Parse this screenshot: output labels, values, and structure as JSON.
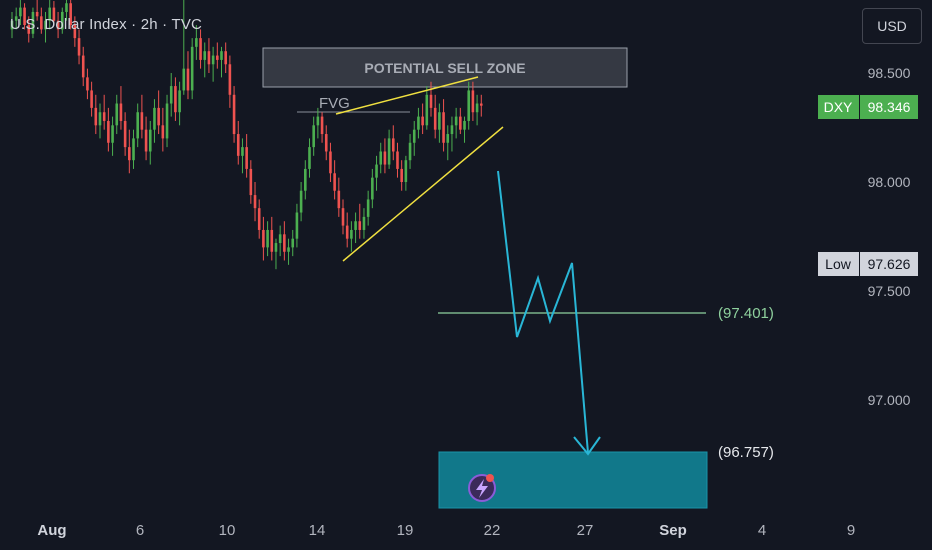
{
  "header": {
    "symbol_title": "U.S. Dollar Index · 2h · TVC"
  },
  "currency_button": {
    "label": "USD"
  },
  "price_tags": {
    "current": {
      "label": "DXY",
      "value": "98.346",
      "color": "#4caf50"
    },
    "low": {
      "label": "Low",
      "value": "97.626",
      "color": "#d1d4dc"
    }
  },
  "annotations": {
    "sell_zone_label": "POTENTIAL SELL ZONE",
    "fvg_label": "FVG",
    "target_1_label": "(97.401)",
    "target_2_label": "(96.757)"
  },
  "colors": {
    "background": "#131722",
    "bull_candle": "#4caf50",
    "bear_candle": "#ef5350",
    "trendline": "#f0e040",
    "projection": "#29b6d6",
    "target_box": "#11788a",
    "target_1_line": "#8fd19e"
  },
  "chart_data": {
    "type": "candlestick",
    "title": "U.S. Dollar Index · 2h · TVC",
    "x_tick_labels": [
      "Aug",
      "6",
      "10",
      "14",
      "19",
      "22",
      "27",
      "Sep",
      "4",
      "9"
    ],
    "y_tick_labels": [
      "98.500",
      "98.000",
      "97.500",
      "97.000"
    ],
    "ylim": [
      96.55,
      98.85
    ],
    "grid": false,
    "current_price": 98.346,
    "low": 97.626,
    "levels": [
      {
        "name": "(97.401)",
        "value": 97.401
      },
      {
        "name": "(96.757)",
        "value": 96.757
      }
    ],
    "sell_zone": {
      "low": 98.42,
      "high": 98.66
    },
    "fvg_level": 98.33,
    "rising_wedge": {
      "upper": [
        {
          "x": "Aug 15",
          "y": 98.33
        },
        {
          "x": "Aug 21",
          "y": 98.48
        }
      ],
      "lower": [
        {
          "x": "Aug 15",
          "y": 97.62
        },
        {
          "x": "Aug 22",
          "y": 98.23
        }
      ]
    },
    "projection_path": [
      98.09,
      97.3,
      97.61,
      97.4,
      97.68,
      96.75
    ],
    "target_zone": {
      "high": 96.757,
      "low": 96.6
    },
    "candles": [
      [
        1,
        98.7,
        98.78,
        98.66,
        98.74
      ],
      [
        2,
        98.74,
        98.8,
        98.7,
        98.76
      ],
      [
        3,
        98.76,
        98.85,
        98.72,
        98.8
      ],
      [
        4,
        98.8,
        98.82,
        98.7,
        98.72
      ],
      [
        5,
        98.72,
        98.76,
        98.64,
        98.68
      ],
      [
        6,
        98.68,
        98.8,
        98.66,
        98.78
      ],
      [
        7,
        98.78,
        98.84,
        98.74,
        98.76
      ],
      [
        8,
        98.76,
        98.8,
        98.68,
        98.7
      ],
      [
        9,
        98.7,
        98.78,
        98.64,
        98.74
      ],
      [
        10,
        98.74,
        98.84,
        98.7,
        98.8
      ],
      [
        11,
        98.8,
        98.83,
        98.72,
        98.74
      ],
      [
        12,
        98.74,
        98.78,
        98.66,
        98.7
      ],
      [
        13,
        98.7,
        98.8,
        98.68,
        98.78
      ],
      [
        14,
        98.78,
        98.85,
        98.74,
        98.82
      ],
      [
        15,
        98.82,
        98.84,
        98.7,
        98.72
      ],
      [
        16,
        98.72,
        98.76,
        98.62,
        98.66
      ],
      [
        17,
        98.66,
        98.7,
        98.54,
        98.58
      ],
      [
        18,
        98.58,
        98.62,
        98.44,
        98.48
      ],
      [
        19,
        98.48,
        98.52,
        98.38,
        98.42
      ],
      [
        20,
        98.42,
        98.46,
        98.3,
        98.34
      ],
      [
        21,
        98.34,
        98.4,
        98.22,
        98.26
      ],
      [
        22,
        98.26,
        98.36,
        98.2,
        98.32
      ],
      [
        23,
        98.32,
        98.4,
        98.24,
        98.28
      ],
      [
        24,
        98.28,
        98.34,
        98.14,
        98.18
      ],
      [
        25,
        98.18,
        98.3,
        98.12,
        98.26
      ],
      [
        26,
        98.26,
        98.4,
        98.22,
        98.36
      ],
      [
        27,
        98.36,
        98.44,
        98.24,
        98.28
      ],
      [
        28,
        98.28,
        98.32,
        98.12,
        98.16
      ],
      [
        29,
        98.16,
        98.24,
        98.04,
        98.1
      ],
      [
        30,
        98.1,
        98.24,
        98.06,
        98.2
      ],
      [
        31,
        98.2,
        98.36,
        98.16,
        98.32
      ],
      [
        32,
        98.32,
        98.4,
        98.2,
        98.24
      ],
      [
        33,
        98.24,
        98.3,
        98.1,
        98.14
      ],
      [
        34,
        98.14,
        98.28,
        98.08,
        98.24
      ],
      [
        35,
        98.24,
        98.38,
        98.18,
        98.34
      ],
      [
        36,
        98.34,
        98.42,
        98.22,
        98.26
      ],
      [
        37,
        98.26,
        98.34,
        98.14,
        98.2
      ],
      [
        38,
        98.2,
        98.4,
        98.16,
        98.36
      ],
      [
        39,
        98.36,
        98.5,
        98.3,
        98.44
      ],
      [
        40,
        98.44,
        98.48,
        98.28,
        98.32
      ],
      [
        41,
        98.32,
        98.46,
        98.26,
        98.42
      ],
      [
        42,
        98.42,
        98.88,
        98.4,
        98.52
      ],
      [
        43,
        98.52,
        98.6,
        98.38,
        98.42
      ],
      [
        44,
        98.42,
        98.66,
        98.38,
        98.62
      ],
      [
        45,
        98.62,
        98.72,
        98.56,
        98.66
      ],
      [
        46,
        98.66,
        98.7,
        98.52,
        98.56
      ],
      [
        47,
        98.56,
        98.64,
        98.48,
        98.6
      ],
      [
        48,
        98.6,
        98.66,
        98.5,
        98.54
      ],
      [
        49,
        98.54,
        98.62,
        98.46,
        98.58
      ],
      [
        50,
        98.58,
        98.64,
        98.52,
        98.56
      ],
      [
        51,
        98.56,
        98.62,
        98.48,
        98.6
      ],
      [
        52,
        98.6,
        98.64,
        98.5,
        98.54
      ],
      [
        53,
        98.54,
        98.58,
        98.34,
        98.4
      ],
      [
        54,
        98.4,
        98.44,
        98.18,
        98.22
      ],
      [
        55,
        98.22,
        98.28,
        98.08,
        98.12
      ],
      [
        56,
        98.12,
        98.2,
        98.04,
        98.16
      ],
      [
        57,
        98.16,
        98.22,
        98.02,
        98.06
      ],
      [
        58,
        98.06,
        98.1,
        97.9,
        97.94
      ],
      [
        59,
        97.94,
        98.0,
        97.82,
        97.88
      ],
      [
        60,
        97.88,
        97.92,
        97.74,
        97.78
      ],
      [
        61,
        97.78,
        97.84,
        97.64,
        97.7
      ],
      [
        62,
        97.7,
        97.82,
        97.66,
        97.78
      ],
      [
        63,
        97.78,
        97.84,
        97.64,
        97.68
      ],
      [
        64,
        97.68,
        97.74,
        97.6,
        97.72
      ],
      [
        65,
        97.72,
        97.8,
        97.66,
        97.76
      ],
      [
        66,
        97.76,
        97.82,
        97.64,
        97.68
      ],
      [
        67,
        97.68,
        97.74,
        97.62,
        97.7
      ],
      [
        68,
        97.7,
        97.78,
        97.66,
        97.74
      ],
      [
        69,
        97.74,
        97.9,
        97.7,
        97.86
      ],
      [
        70,
        97.86,
        98.0,
        97.82,
        97.96
      ],
      [
        71,
        97.96,
        98.1,
        97.92,
        98.06
      ],
      [
        72,
        98.06,
        98.2,
        98.02,
        98.16
      ],
      [
        73,
        98.16,
        98.3,
        98.12,
        98.26
      ],
      [
        74,
        98.26,
        98.34,
        98.2,
        98.3
      ],
      [
        75,
        98.3,
        98.32,
        98.18,
        98.22
      ],
      [
        76,
        98.22,
        98.26,
        98.1,
        98.14
      ],
      [
        77,
        98.14,
        98.18,
        98.0,
        98.04
      ],
      [
        78,
        98.04,
        98.1,
        97.92,
        97.96
      ],
      [
        79,
        97.96,
        98.02,
        97.84,
        97.88
      ],
      [
        80,
        97.88,
        97.92,
        97.76,
        97.8
      ],
      [
        81,
        97.8,
        97.86,
        97.7,
        97.74
      ],
      [
        82,
        97.74,
        97.82,
        97.68,
        97.78
      ],
      [
        83,
        97.78,
        97.86,
        97.72,
        97.82
      ],
      [
        84,
        97.82,
        97.9,
        97.74,
        97.78
      ],
      [
        85,
        97.78,
        97.88,
        97.74,
        97.84
      ],
      [
        86,
        97.84,
        97.96,
        97.8,
        97.92
      ],
      [
        87,
        97.92,
        98.06,
        97.88,
        98.02
      ],
      [
        88,
        98.02,
        98.12,
        97.96,
        98.08
      ],
      [
        89,
        98.08,
        98.18,
        98.04,
        98.14
      ],
      [
        90,
        98.14,
        98.2,
        98.04,
        98.08
      ],
      [
        91,
        98.08,
        98.24,
        98.06,
        98.2
      ],
      [
        92,
        98.2,
        98.26,
        98.1,
        98.14
      ],
      [
        93,
        98.14,
        98.18,
        98.02,
        98.06
      ],
      [
        94,
        98.06,
        98.1,
        97.96,
        98.0
      ],
      [
        95,
        98.0,
        98.12,
        97.96,
        98.1
      ],
      [
        96,
        98.1,
        98.22,
        98.06,
        98.18
      ],
      [
        97,
        98.18,
        98.28,
        98.12,
        98.24
      ],
      [
        98,
        98.24,
        98.34,
        98.2,
        98.3
      ],
      [
        99,
        98.3,
        98.36,
        98.22,
        98.26
      ],
      [
        100,
        98.26,
        98.44,
        98.24,
        98.4
      ],
      [
        101,
        98.4,
        98.46,
        98.3,
        98.34
      ],
      [
        102,
        98.34,
        98.4,
        98.2,
        98.24
      ],
      [
        103,
        98.24,
        98.36,
        98.18,
        98.32
      ],
      [
        104,
        98.32,
        98.38,
        98.14,
        98.18
      ],
      [
        105,
        98.18,
        98.26,
        98.1,
        98.22
      ],
      [
        106,
        98.22,
        98.3,
        98.14,
        98.26
      ],
      [
        107,
        98.26,
        98.34,
        98.2,
        98.3
      ],
      [
        108,
        98.3,
        98.34,
        98.22,
        98.24
      ],
      [
        109,
        98.24,
        98.3,
        98.18,
        98.28
      ],
      [
        110,
        98.28,
        98.46,
        98.24,
        98.42
      ],
      [
        111,
        98.42,
        98.46,
        98.28,
        98.32
      ],
      [
        112,
        98.32,
        98.4,
        98.26,
        98.36
      ],
      [
        113,
        98.36,
        98.4,
        98.3,
        98.35
      ]
    ]
  }
}
